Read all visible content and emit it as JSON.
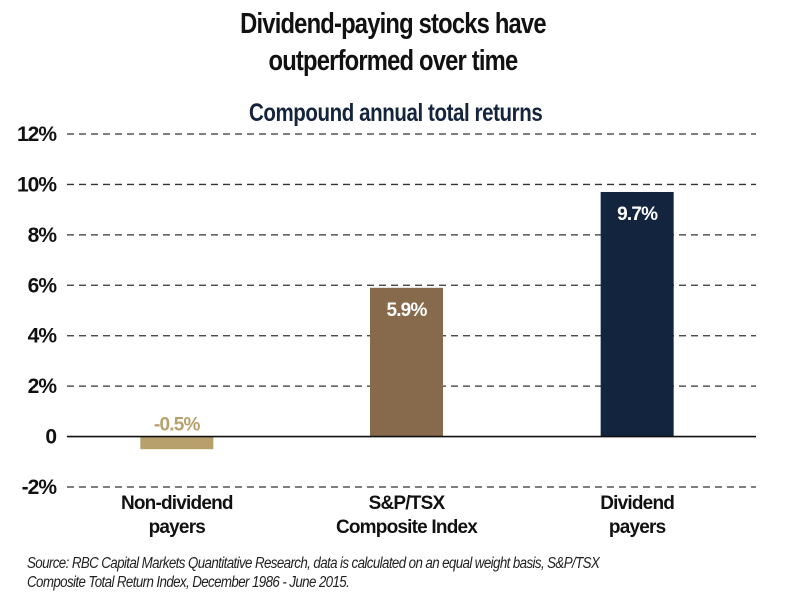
{
  "chart_data": {
    "type": "bar",
    "title": "Dividend-paying stocks have outperformed over time",
    "title_lines": [
      "Dividend-paying stocks have",
      "outperformed over time"
    ],
    "subtitle": "Compound annual total returns",
    "xlabel": "",
    "ylabel": "",
    "ylim": [
      -2,
      12
    ],
    "yticks": [
      12,
      10,
      8,
      6,
      4,
      2,
      0,
      -2
    ],
    "ytick_labels": [
      "12%",
      "10%",
      "8%",
      "6%",
      "4%",
      "2%",
      "0",
      "-2%"
    ],
    "grid": true,
    "categories": [
      "Non-dividend payers",
      "S&P/TSX Composite Index",
      "Dividend payers"
    ],
    "category_lines": [
      [
        "Non-dividend",
        "payers"
      ],
      [
        "S&P/TSX",
        "Composite Index"
      ],
      [
        "Dividend",
        "payers"
      ]
    ],
    "values": [
      -0.5,
      5.9,
      9.7
    ],
    "data_labels": [
      "-0.5%",
      "5.9%",
      "9.7%"
    ],
    "colors": [
      "#b7a06c",
      "#876a4c",
      "#13243f"
    ],
    "data_label_colors": [
      "#b7a06c",
      "#ffffff",
      "#ffffff"
    ],
    "source_lines": [
      "Source: RBC Capital Markets Quantitative Research, data is calculated on an equal weight basis, S&P/TSX",
      "Composite Total Return Index, December 1986 - June 2015."
    ]
  }
}
